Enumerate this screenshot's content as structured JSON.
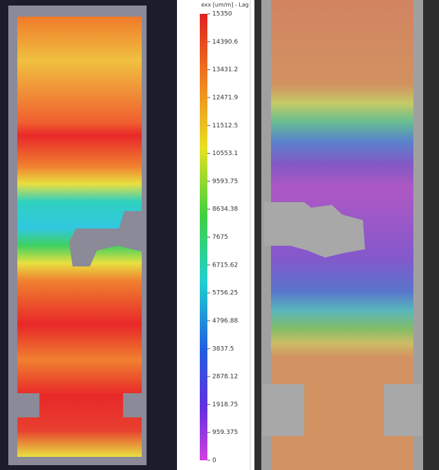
{
  "colorbar": {
    "title": "exx [um/m] - Lag",
    "lim": [
      0,
      15350
    ],
    "ticks": [
      15350,
      14390.6,
      13431.2,
      12471.9,
      11512.5,
      10553.1,
      9593.75,
      8634.38,
      7675,
      6715.62,
      5756.25,
      4796.88,
      3837.5,
      2878.12,
      1918.75,
      959.375,
      0
    ]
  }
}
